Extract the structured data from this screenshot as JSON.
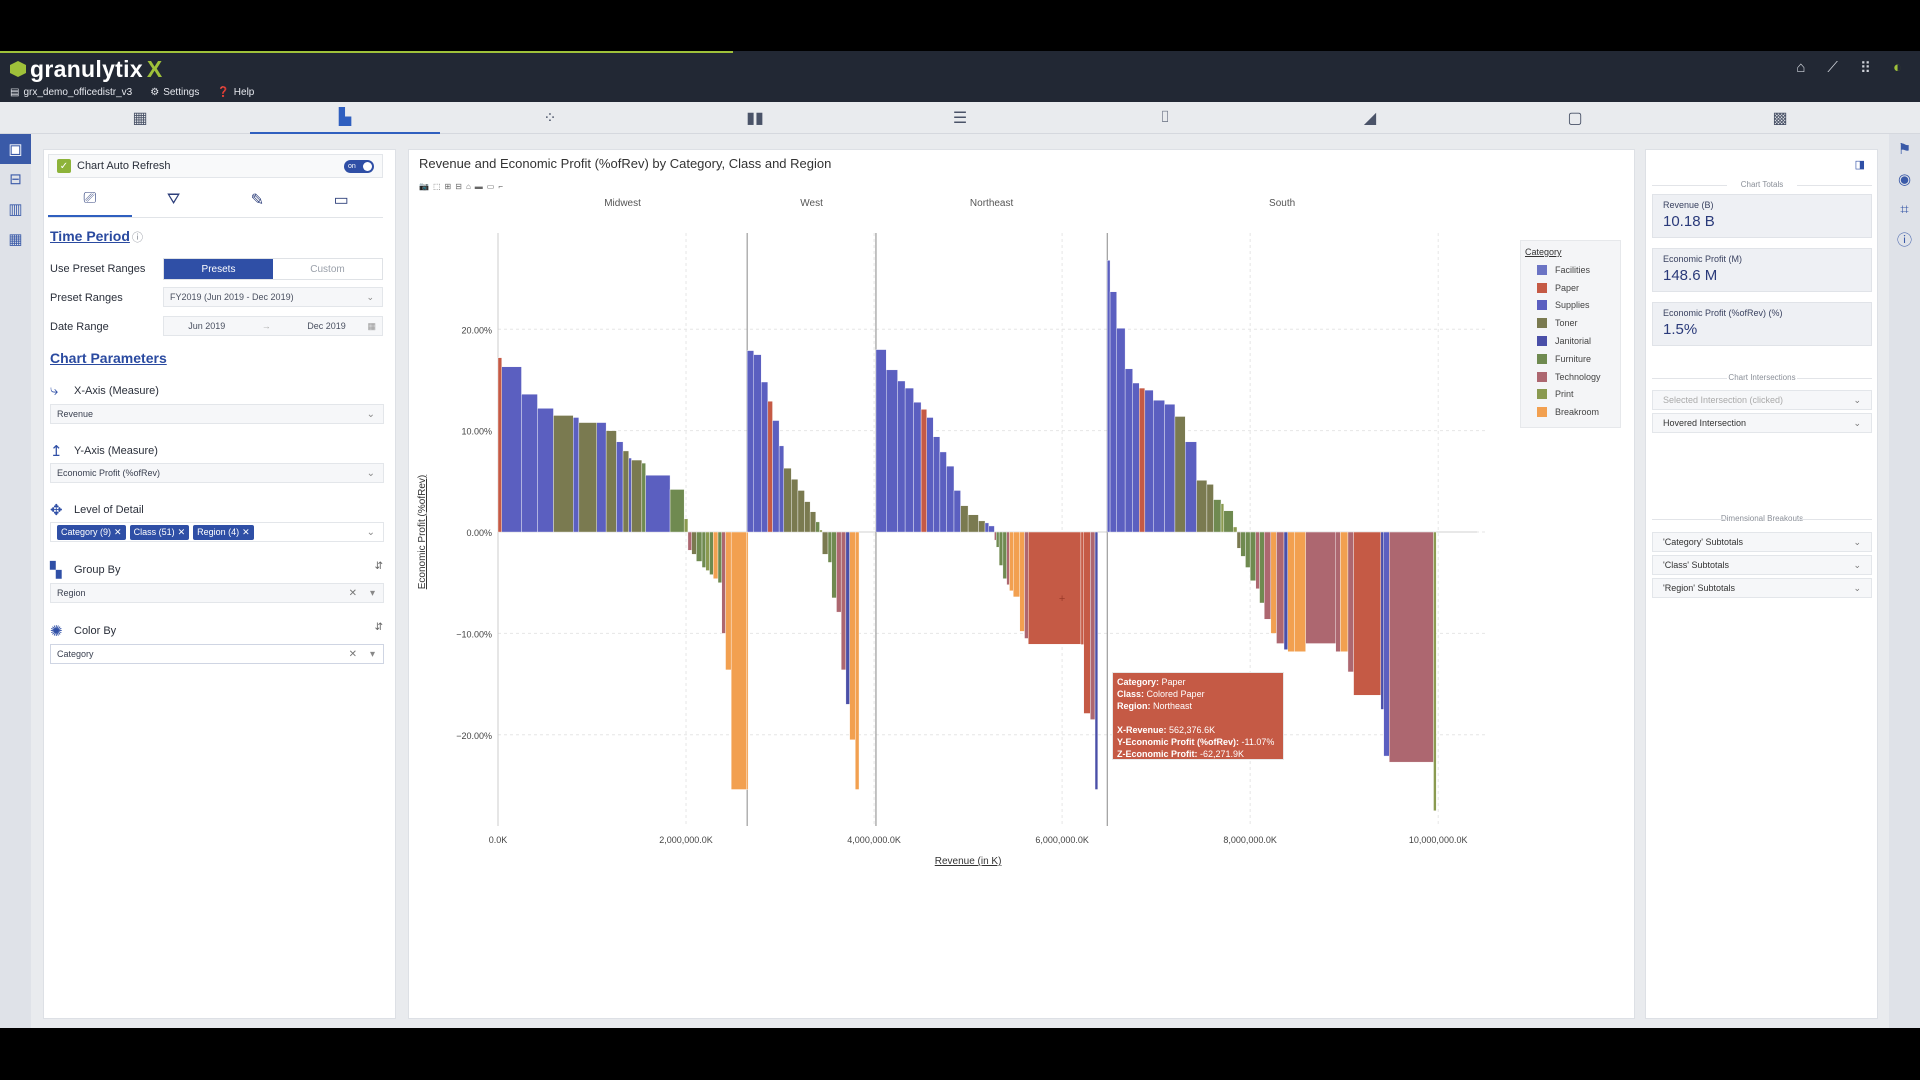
{
  "brand": {
    "logo_text": "granulytix",
    "logo_accent": "X"
  },
  "subnav": {
    "dataset": "grx_demo_officedistr_v3",
    "settings": "Settings",
    "help": "Help"
  },
  "topicons": [
    "home-icon",
    "trend-icon",
    "grid-icon",
    "leaf-icon"
  ],
  "view_tabs": [
    "treemap-icon",
    "bar-step-icon",
    "scatter-icon",
    "column-icon",
    "hbar-icon",
    "waterfall-icon",
    "area-icon",
    "frame-icon",
    "table-icon"
  ],
  "left_panel": {
    "auto_refresh_label": "Chart Auto Refresh",
    "auto_refresh_toggle": "on",
    "time_period_title": "Time Period",
    "use_preset_label": "Use Preset Ranges",
    "presets_btn": "Presets",
    "custom_btn": "Custom",
    "preset_ranges_label": "Preset Ranges",
    "preset_ranges_value": "FY2019 (Jun 2019 - Dec 2019)",
    "date_range_label": "Date Range",
    "date_from": "Jun 2019",
    "date_arrow": "→",
    "date_to": "Dec 2019",
    "chart_params_title": "Chart Parameters",
    "x_axis_label": "X-Axis (Measure)",
    "x_axis_value": "Revenue",
    "y_axis_label": "Y-Axis (Measure)",
    "y_axis_value": "Economic Profit (%ofRev)",
    "lod_label": "Level of Detail",
    "lod_pills": [
      "Category (9)",
      "Class (51)",
      "Region (4)"
    ],
    "group_by_label": "Group By",
    "group_by_value": "Region",
    "color_by_label": "Color By",
    "color_by_value": "Category"
  },
  "chart": {
    "title": "Revenue and Economic Profit (%ofRev) by Category, Class and Region",
    "xlabel": "Revenue (in K)",
    "ylabel": "Economic Profit (%ofRev)"
  },
  "tooltip": {
    "category_k": "Category:",
    "category_v": "Paper",
    "class_k": "Class:",
    "class_v": "Colored Paper",
    "region_k": "Region:",
    "region_v": "Northeast",
    "xrev_k": "X-Revenue:",
    "xrev_v": "562,376.6K",
    "yep_k": "Y-Economic Profit (%ofRev):",
    "yep_v": "-11.07%",
    "zep_k": "Z-Economic Profit:",
    "zep_v": "-62,271.9K"
  },
  "legend_title": "Category",
  "chart_data": {
    "type": "bar",
    "xlim": [
      0,
      10200000
    ],
    "ylim": [
      -29,
      29.5
    ],
    "yticks": [
      20,
      10,
      0,
      -10,
      -20
    ],
    "ytick_labels": [
      "20.00%",
      "10.00%",
      "0.00%",
      "−10.00%",
      "−20.00%"
    ],
    "xticks": [
      0,
      2000000,
      4000000,
      6000000,
      8000000,
      10000000
    ],
    "xtick_labels": [
      "0.0K",
      "2,000,000.0K",
      "4,000,000.0K",
      "6,000,000.0K",
      "8,000,000.0K",
      "10,000,000.0K"
    ],
    "groups": [
      {
        "name": "Midwest",
        "start": 0,
        "end": 2650000
      },
      {
        "name": "West",
        "start": 2650000,
        "end": 4020000
      },
      {
        "name": "Northeast",
        "start": 4020000,
        "end": 6480000
      },
      {
        "name": "South",
        "start": 6480000,
        "end": 10200000
      }
    ],
    "categories": [
      {
        "name": "Facilities",
        "color": "#6b74c4"
      },
      {
        "name": "Paper",
        "color": "#c55a45"
      },
      {
        "name": "Supplies",
        "color": "#5b5fc0"
      },
      {
        "name": "Toner",
        "color": "#7a7a50"
      },
      {
        "name": "Janitorial",
        "color": "#4a4fa8"
      },
      {
        "name": "Furniture",
        "color": "#6f8a50"
      },
      {
        "name": "Technology",
        "color": "#ad6770"
      },
      {
        "name": "Print",
        "color": "#8a9a50"
      },
      {
        "name": "Breakroom",
        "color": "#f2a050"
      }
    ],
    "bars": [
      [
        "Paper",
        0,
        40000,
        17.2
      ],
      [
        "Supplies",
        40000,
        250000,
        16.3
      ],
      [
        "Supplies",
        250000,
        420000,
        13.6
      ],
      [
        "Supplies",
        420000,
        590000,
        12.2
      ],
      [
        "Toner",
        590000,
        800000,
        11.5
      ],
      [
        "Supplies",
        800000,
        860000,
        11.3
      ],
      [
        "Toner",
        860000,
        1050000,
        10.8
      ],
      [
        "Supplies",
        1050000,
        1150000,
        10.8
      ],
      [
        "Toner",
        1150000,
        1260000,
        10.0
      ],
      [
        "Supplies",
        1260000,
        1330000,
        8.9
      ],
      [
        "Toner",
        1330000,
        1390000,
        8.0
      ],
      [
        "Supplies",
        1390000,
        1420000,
        7.3
      ],
      [
        "Toner",
        1420000,
        1530000,
        7.1
      ],
      [
        "Furniture",
        1530000,
        1570000,
        6.8
      ],
      [
        "Supplies",
        1570000,
        1830000,
        5.6
      ],
      [
        "Furniture",
        1830000,
        1980000,
        4.2
      ],
      [
        "Print",
        1980000,
        2020000,
        1.3
      ],
      [
        "Technology",
        2020000,
        2060000,
        -1.8
      ],
      [
        "Toner",
        2060000,
        2110000,
        -2.2
      ],
      [
        "Furniture",
        2110000,
        2170000,
        -2.9
      ],
      [
        "Furniture",
        2170000,
        2210000,
        -3.5
      ],
      [
        "Print",
        2210000,
        2250000,
        -3.8
      ],
      [
        "Furniture",
        2250000,
        2290000,
        -4.2
      ],
      [
        "Breakroom",
        2290000,
        2340000,
        -4.6
      ],
      [
        "Furniture",
        2340000,
        2380000,
        -5.0
      ],
      [
        "Technology",
        2380000,
        2420000,
        -10.0
      ],
      [
        "Breakroom",
        2420000,
        2480000,
        -13.6
      ],
      [
        "Breakroom",
        2480000,
        2640000,
        -25.4
      ],
      [
        "Breakroom",
        2640000,
        2660000,
        -25.4
      ],
      [
        "Supplies",
        2650000,
        2720000,
        17.9
      ],
      [
        "Supplies",
        2720000,
        2800000,
        17.5
      ],
      [
        "Supplies",
        2800000,
        2870000,
        14.8
      ],
      [
        "Paper",
        2870000,
        2920000,
        12.9
      ],
      [
        "Supplies",
        2920000,
        2990000,
        11.0
      ],
      [
        "Supplies",
        2990000,
        3040000,
        8.5
      ],
      [
        "Toner",
        3040000,
        3120000,
        6.3
      ],
      [
        "Toner",
        3120000,
        3190000,
        5.2
      ],
      [
        "Toner",
        3190000,
        3260000,
        4.1
      ],
      [
        "Toner",
        3260000,
        3320000,
        3.0
      ],
      [
        "Toner",
        3320000,
        3380000,
        2.0
      ],
      [
        "Furniture",
        3380000,
        3420000,
        1.0
      ],
      [
        "Print",
        3420000,
        3450000,
        0.2
      ],
      [
        "Toner",
        3450000,
        3510000,
        -2.2
      ],
      [
        "Furniture",
        3510000,
        3550000,
        -3.0
      ],
      [
        "Furniture",
        3550000,
        3600000,
        -6.5
      ],
      [
        "Technology",
        3600000,
        3650000,
        -7.9
      ],
      [
        "Technology",
        3650000,
        3700000,
        -13.6
      ],
      [
        "Janitorial",
        3700000,
        3740000,
        -17.0
      ],
      [
        "Breakroom",
        3740000,
        3800000,
        -20.5
      ],
      [
        "Breakroom",
        3800000,
        3840000,
        -25.4
      ],
      [
        "Supplies",
        4020000,
        4130000,
        18.0
      ],
      [
        "Supplies",
        4130000,
        4250000,
        16.0
      ],
      [
        "Supplies",
        4250000,
        4330000,
        14.9
      ],
      [
        "Supplies",
        4330000,
        4420000,
        14.2
      ],
      [
        "Supplies",
        4420000,
        4500000,
        12.8
      ],
      [
        "Paper",
        4500000,
        4560000,
        12.1
      ],
      [
        "Supplies",
        4560000,
        4630000,
        11.3
      ],
      [
        "Supplies",
        4630000,
        4700000,
        9.4
      ],
      [
        "Supplies",
        4700000,
        4770000,
        7.9
      ],
      [
        "Supplies",
        4770000,
        4850000,
        6.5
      ],
      [
        "Supplies",
        4850000,
        4920000,
        4.1
      ],
      [
        "Toner",
        4920000,
        5000000,
        2.6
      ],
      [
        "Toner",
        5000000,
        5110000,
        1.7
      ],
      [
        "Toner",
        5110000,
        5180000,
        1.1
      ],
      [
        "Supplies",
        5180000,
        5220000,
        0.9
      ],
      [
        "Supplies",
        5220000,
        5280000,
        0.6
      ],
      [
        "Technology",
        5280000,
        5300000,
        -0.8
      ],
      [
        "Furniture",
        5300000,
        5330000,
        -1.5
      ],
      [
        "Furniture",
        5330000,
        5370000,
        -3.3
      ],
      [
        "Furniture",
        5370000,
        5410000,
        -4.6
      ],
      [
        "Technology",
        5410000,
        5440000,
        -5.2
      ],
      [
        "Breakroom",
        5440000,
        5480000,
        -5.8
      ],
      [
        "Breakroom",
        5480000,
        5550000,
        -6.4
      ],
      [
        "Breakroom",
        5550000,
        5600000,
        -9.8
      ],
      [
        "Technology",
        5600000,
        5640000,
        -10.5
      ],
      [
        "Paper",
        5640000,
        6200000,
        -11.07
      ],
      [
        "Paper",
        6200000,
        6230000,
        -11.1
      ],
      [
        "Paper",
        6230000,
        6300000,
        -17.9
      ],
      [
        "Technology",
        6300000,
        6350000,
        -18.5
      ],
      [
        "Janitorial",
        6350000,
        6380000,
        -25.4
      ],
      [
        "Supplies",
        6480000,
        6510000,
        26.8
      ],
      [
        "Supplies",
        6510000,
        6580000,
        23.7
      ],
      [
        "Supplies",
        6580000,
        6670000,
        20.1
      ],
      [
        "Supplies",
        6670000,
        6750000,
        16.1
      ],
      [
        "Supplies",
        6750000,
        6820000,
        14.7
      ],
      [
        "Paper",
        6820000,
        6880000,
        14.2
      ],
      [
        "Supplies",
        6880000,
        6970000,
        14.0
      ],
      [
        "Supplies",
        6970000,
        7090000,
        13.0
      ],
      [
        "Supplies",
        7090000,
        7200000,
        12.6
      ],
      [
        "Toner",
        7200000,
        7310000,
        11.4
      ],
      [
        "Supplies",
        7310000,
        7430000,
        8.9
      ],
      [
        "Toner",
        7430000,
        7540000,
        5.1
      ],
      [
        "Toner",
        7540000,
        7610000,
        4.7
      ],
      [
        "Furniture",
        7610000,
        7690000,
        3.2
      ],
      [
        "Print",
        7690000,
        7720000,
        2.8
      ],
      [
        "Furniture",
        7720000,
        7820000,
        2.1
      ],
      [
        "Print",
        7820000,
        7860000,
        0.5
      ],
      [
        "Toner",
        7860000,
        7900000,
        -1.6
      ],
      [
        "Furniture",
        7900000,
        7950000,
        -2.4
      ],
      [
        "Furniture",
        7950000,
        8000000,
        -3.5
      ],
      [
        "Furniture",
        8000000,
        8060000,
        -4.8
      ],
      [
        "Technology",
        8060000,
        8100000,
        -5.6
      ],
      [
        "Furniture",
        8100000,
        8150000,
        -7.0
      ],
      [
        "Technology",
        8150000,
        8220000,
        -8.6
      ],
      [
        "Breakroom",
        8220000,
        8280000,
        -10.0
      ],
      [
        "Technology",
        8280000,
        8360000,
        -11.0
      ],
      [
        "Janitorial",
        8360000,
        8400000,
        -11.6
      ],
      [
        "Breakroom",
        8400000,
        8470000,
        -11.8
      ],
      [
        "Breakroom",
        8470000,
        8590000,
        -11.8
      ],
      [
        "Technology",
        8590000,
        8910000,
        -11.0
      ],
      [
        "Technology",
        8910000,
        8960000,
        -11.8
      ],
      [
        "Breakroom",
        8960000,
        9040000,
        -11.8
      ],
      [
        "Technology",
        9040000,
        9100000,
        -13.8
      ],
      [
        "Paper",
        9100000,
        9390000,
        -16.1
      ],
      [
        "Janitorial",
        9390000,
        9420000,
        -17.5
      ],
      [
        "Supplies",
        9420000,
        9480000,
        -22.1
      ],
      [
        "Technology",
        9480000,
        9950000,
        -22.7
      ],
      [
        "Print",
        9950000,
        9980000,
        -27.5
      ]
    ]
  },
  "right_panel": {
    "totals_header": "Chart Totals",
    "cards": [
      {
        "key": "Revenue (B)",
        "value": "10.18 B"
      },
      {
        "key": "Economic Profit (M)",
        "value": "148.6 M"
      },
      {
        "key": "Economic Profit (%ofRev) (%)",
        "value": "1.5%"
      }
    ],
    "intersections_header": "Chart Intersections",
    "selected_intersection": "Selected Intersection (clicked)",
    "hovered_intersection": "Hovered Intersection",
    "breakouts_header": "Dimensional Breakouts",
    "breakouts": [
      "'Category' Subtotals",
      "'Class' Subtotals",
      "'Region' Subtotals"
    ]
  }
}
